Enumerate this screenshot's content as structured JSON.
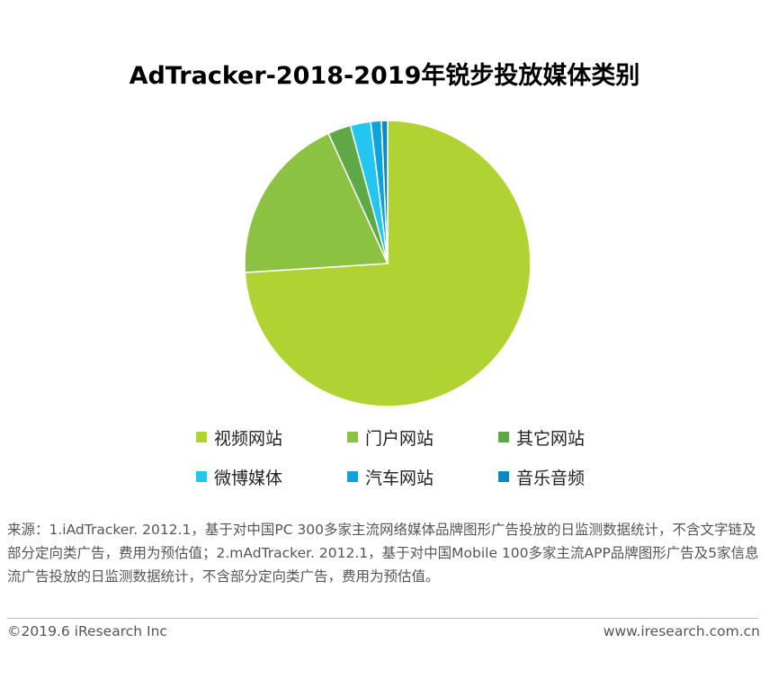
{
  "chart_data": {
    "type": "pie",
    "title": "AdTracker-2018-2019年锐步投放媒体类别",
    "categories": [
      "视频网站",
      "门户网站",
      "其它网站",
      "微博媒体",
      "汽车网站",
      "音乐音频"
    ],
    "values": [
      74.0,
      19.2,
      2.6,
      2.3,
      1.2,
      0.7
    ],
    "colors": [
      "#b1d233",
      "#8cc242",
      "#5ea945",
      "#23c6ee",
      "#0fa3dd",
      "#0b89c7"
    ],
    "start_angle_deg": 0,
    "direction": "clockwise",
    "legend_position": "bottom"
  },
  "source": {
    "text": "来源：1.iAdTracker. 2012.1，基于对中国PC 300多家主流网络媒体品牌图形广告投放的日监测数据统计，不含文字链及部分定向类广告，费用为预估值；2.mAdTracker. 2012.1，基于对中国Mobile 100多家主流APP品牌图形广告及5家信息流广告投放的日监测数据统计，不含部分定向类广告，费用为预估值。"
  },
  "footer": {
    "copyright": "©2019.6 iResearch Inc",
    "website": "www.iresearch.com.cn"
  }
}
